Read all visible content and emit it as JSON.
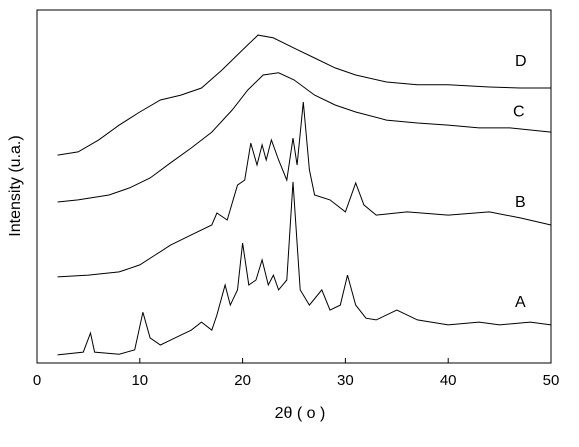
{
  "chart_data": {
    "type": "line",
    "xlabel": "2θ ( o )",
    "ylabel": "Intensity (u.a.)",
    "xlim": [
      0,
      50
    ],
    "xticks": [
      0,
      10,
      20,
      30,
      40,
      50
    ],
    "ylim": [
      0,
      100
    ],
    "series": [
      {
        "name": "A",
        "color": "#000000",
        "x": [
          2,
          4.5,
          5.2,
          5.6,
          8,
          9.5,
          10.3,
          11,
          12,
          13,
          14,
          15,
          16,
          17,
          17.5,
          18.3,
          18.8,
          19.5,
          20,
          20.6,
          21.3,
          21.9,
          22.5,
          23,
          23.5,
          24.3,
          24.9,
          25.6,
          26.5,
          27.7,
          28.5,
          29.5,
          30.2,
          31,
          32,
          33,
          35,
          37,
          40,
          43,
          45,
          48,
          50
        ],
        "values": [
          2.3,
          3.1,
          8.5,
          3.1,
          2.5,
          3.7,
          14.4,
          7.1,
          5.1,
          6.5,
          7.9,
          9.3,
          11.6,
          9.3,
          13.6,
          22.1,
          16.4,
          20.7,
          34,
          22.1,
          23.5,
          29.2,
          22.1,
          24.9,
          20.7,
          23.5,
          51.3,
          20.7,
          16.4,
          20.7,
          15,
          16.4,
          24.9,
          16.4,
          12.7,
          12.2,
          15,
          12.2,
          10.8,
          11.6,
          10.8,
          11.6,
          10.8
        ]
      },
      {
        "name": "B",
        "color": "#000000",
        "x": [
          2,
          5,
          8,
          10,
          11.5,
          13,
          15,
          17,
          17.5,
          18.5,
          19.5,
          20.2,
          20.8,
          21.4,
          21.9,
          22.3,
          22.8,
          23.5,
          24.3,
          24.9,
          25.3,
          25.9,
          26.5,
          27,
          28.5,
          30,
          31,
          31.8,
          33,
          36,
          40,
          44,
          47,
          50
        ],
        "values": [
          24.4,
          24.9,
          25.8,
          27.8,
          30.6,
          33.4,
          36.3,
          39.1,
          42.5,
          40.5,
          50.4,
          51.8,
          62.3,
          56.1,
          61.8,
          57.5,
          63.2,
          57.5,
          51.8,
          63.7,
          56.1,
          73.9,
          54.7,
          47.6,
          46.2,
          42.8,
          51,
          44.8,
          41.9,
          42.8,
          41.9,
          42.8,
          41.1,
          39.1
        ]
      },
      {
        "name": "C",
        "color": "#000000",
        "x": [
          2,
          4,
          7,
          9,
          11,
          13,
          15,
          17,
          19,
          20.5,
          22,
          23.5,
          25,
          27,
          29,
          31,
          34,
          37,
          40,
          43,
          46,
          50
        ],
        "values": [
          45.6,
          46.2,
          47.6,
          49.6,
          52.4,
          56.7,
          60.9,
          65.4,
          71.7,
          77.3,
          81.6,
          82.2,
          80.2,
          75.9,
          73.1,
          71.1,
          68.8,
          68,
          67.4,
          66.6,
          66.6,
          65.4
        ]
      },
      {
        "name": "D",
        "color": "#000000",
        "x": [
          2,
          4,
          6,
          8,
          10,
          12,
          14,
          16,
          18,
          20,
          21.5,
          23,
          25,
          27,
          29,
          31,
          34,
          37,
          40,
          44,
          47,
          50
        ],
        "values": [
          58.9,
          59.8,
          63.2,
          67.4,
          71.1,
          74.5,
          75.9,
          77.9,
          83,
          88.7,
          92.9,
          92.1,
          89.2,
          86.4,
          83.6,
          81.6,
          79.6,
          78.8,
          78.8,
          78.2,
          77.9,
          77.9
        ]
      }
    ]
  }
}
